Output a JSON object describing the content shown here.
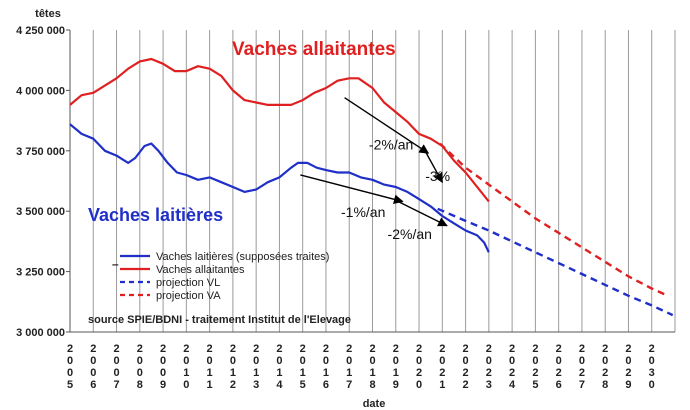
{
  "chart_data": {
    "type": "line",
    "ylabel": "têtes",
    "xlabel": "date",
    "ylim": [
      3000000,
      4250000
    ],
    "yticks": [
      3000000,
      3250000,
      3500000,
      3750000,
      4000000,
      4250000
    ],
    "ytick_labels": [
      "3 000 000",
      "3 250 000",
      "3 500 000",
      "3 750 000",
      "4 000 000",
      "4 250 000"
    ],
    "xlim": [
      2005,
      2031
    ],
    "xticks": [
      "2005",
      "2006",
      "2007",
      "2008",
      "2009",
      "2010",
      "2011",
      "2012",
      "2013",
      "2014",
      "2015",
      "2016",
      "2017",
      "2018",
      "2019",
      "2020",
      "2021",
      "2022",
      "2023",
      "2024",
      "2025",
      "2026",
      "2027",
      "2028",
      "2029",
      "2030"
    ],
    "grid": "vertical",
    "colors": {
      "vl": "#1f2fc8",
      "va": "#e02020",
      "annotation": "#000000"
    },
    "series": [
      {
        "name": "Vaches laitières (supposées traites)",
        "key": "vl",
        "style": "solid",
        "points": [
          [
            2005.0,
            3860000
          ],
          [
            2005.5,
            3820000
          ],
          [
            2006.0,
            3800000
          ],
          [
            2006.5,
            3750000
          ],
          [
            2007.0,
            3730000
          ],
          [
            2007.5,
            3700000
          ],
          [
            2007.8,
            3720000
          ],
          [
            2008.2,
            3770000
          ],
          [
            2008.5,
            3780000
          ],
          [
            2008.8,
            3750000
          ],
          [
            2009.2,
            3700000
          ],
          [
            2009.6,
            3660000
          ],
          [
            2010.0,
            3650000
          ],
          [
            2010.5,
            3630000
          ],
          [
            2011.0,
            3640000
          ],
          [
            2011.5,
            3620000
          ],
          [
            2012.0,
            3600000
          ],
          [
            2012.5,
            3580000
          ],
          [
            2013.0,
            3590000
          ],
          [
            2013.5,
            3620000
          ],
          [
            2014.0,
            3640000
          ],
          [
            2014.5,
            3680000
          ],
          [
            2014.8,
            3700000
          ],
          [
            2015.2,
            3700000
          ],
          [
            2015.6,
            3680000
          ],
          [
            2016.0,
            3670000
          ],
          [
            2016.5,
            3660000
          ],
          [
            2017.0,
            3660000
          ],
          [
            2017.5,
            3640000
          ],
          [
            2018.0,
            3630000
          ],
          [
            2018.5,
            3610000
          ],
          [
            2019.0,
            3600000
          ],
          [
            2019.5,
            3580000
          ],
          [
            2020.0,
            3550000
          ],
          [
            2020.5,
            3520000
          ],
          [
            2021.0,
            3480000
          ],
          [
            2021.5,
            3450000
          ],
          [
            2022.0,
            3420000
          ],
          [
            2022.5,
            3400000
          ],
          [
            2022.8,
            3370000
          ],
          [
            2023.0,
            3330000
          ]
        ]
      },
      {
        "name": "Vaches allaitantes",
        "key": "va",
        "style": "solid",
        "points": [
          [
            2005.0,
            3940000
          ],
          [
            2005.5,
            3980000
          ],
          [
            2006.0,
            3990000
          ],
          [
            2006.5,
            4020000
          ],
          [
            2007.0,
            4050000
          ],
          [
            2007.5,
            4090000
          ],
          [
            2008.0,
            4120000
          ],
          [
            2008.5,
            4130000
          ],
          [
            2009.0,
            4110000
          ],
          [
            2009.5,
            4080000
          ],
          [
            2010.0,
            4080000
          ],
          [
            2010.5,
            4100000
          ],
          [
            2011.0,
            4090000
          ],
          [
            2011.5,
            4060000
          ],
          [
            2012.0,
            4000000
          ],
          [
            2012.5,
            3960000
          ],
          [
            2013.0,
            3950000
          ],
          [
            2013.5,
            3940000
          ],
          [
            2014.0,
            3940000
          ],
          [
            2014.5,
            3940000
          ],
          [
            2015.0,
            3960000
          ],
          [
            2015.5,
            3990000
          ],
          [
            2016.0,
            4010000
          ],
          [
            2016.5,
            4040000
          ],
          [
            2017.0,
            4050000
          ],
          [
            2017.4,
            4050000
          ],
          [
            2018.0,
            4010000
          ],
          [
            2018.5,
            3950000
          ],
          [
            2019.0,
            3910000
          ],
          [
            2019.5,
            3870000
          ],
          [
            2020.0,
            3820000
          ],
          [
            2020.5,
            3800000
          ],
          [
            2021.0,
            3770000
          ],
          [
            2021.5,
            3710000
          ],
          [
            2022.0,
            3660000
          ],
          [
            2022.5,
            3600000
          ],
          [
            2023.0,
            3540000
          ]
        ]
      },
      {
        "name": "projection VL",
        "key": "vl",
        "style": "dashed",
        "points": [
          [
            2020.8,
            3510000
          ],
          [
            2022.0,
            3460000
          ],
          [
            2023.0,
            3420000
          ],
          [
            2024.0,
            3375000
          ],
          [
            2025.0,
            3330000
          ],
          [
            2026.0,
            3285000
          ],
          [
            2027.0,
            3240000
          ],
          [
            2028.0,
            3195000
          ],
          [
            2029.0,
            3150000
          ],
          [
            2030.0,
            3110000
          ],
          [
            2030.9,
            3070000
          ]
        ]
      },
      {
        "name": "projection VA",
        "key": "va",
        "style": "dashed",
        "points": [
          [
            2020.9,
            3780000
          ],
          [
            2022.0,
            3680000
          ],
          [
            2023.0,
            3610000
          ],
          [
            2024.0,
            3540000
          ],
          [
            2025.0,
            3470000
          ],
          [
            2026.0,
            3410000
          ],
          [
            2027.0,
            3350000
          ],
          [
            2028.0,
            3290000
          ],
          [
            2029.0,
            3230000
          ],
          [
            2030.0,
            3180000
          ],
          [
            2030.7,
            3150000
          ]
        ]
      }
    ],
    "series_labels": {
      "va": "Vaches allaitantes",
      "vl": "Vaches laitières"
    },
    "annotations": [
      {
        "text": "-2%/an",
        "x": 2018.8,
        "y": 3755000
      },
      {
        "text": "-3%",
        "x": 2020.8,
        "y": 3625000
      },
      {
        "text": "-1%/an",
        "x": 2017.6,
        "y": 3475000
      },
      {
        "text": "-2%/an",
        "x": 2019.6,
        "y": 3385000
      }
    ],
    "arrows": [
      {
        "from": [
          2016.8,
          3970000
        ],
        "to": [
          2020.4,
          3740000
        ]
      },
      {
        "from": [
          2020.2,
          3760000
        ],
        "to": [
          2021.0,
          3620000
        ]
      },
      {
        "from": [
          2014.9,
          3650000
        ],
        "to": [
          2019.3,
          3540000
        ]
      },
      {
        "from": [
          2019.1,
          3540000
        ],
        "to": [
          2021.2,
          3440000
        ]
      }
    ],
    "legend_entries": [
      {
        "label": "Vaches laitières (supposées traites)",
        "key": "vl",
        "style": "solid"
      },
      {
        "label": "Vaches allaitantes",
        "key": "va",
        "style": "solid"
      },
      {
        "label": "projection VL",
        "key": "vl",
        "style": "dashed"
      },
      {
        "label": "projection VA",
        "key": "va",
        "style": "dashed"
      }
    ],
    "legend_position": "bottom-left",
    "source": "source SPIE/BDNI - traitement Institut de l'Elevage"
  }
}
